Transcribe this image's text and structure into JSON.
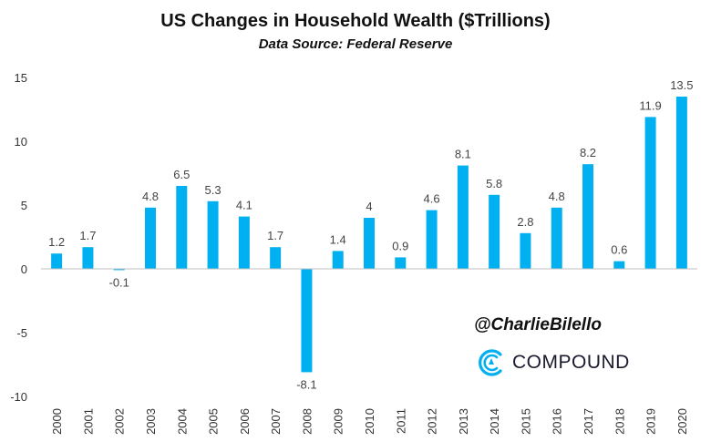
{
  "title": "US Changes in Household Wealth ($Trillions)",
  "subtitle": "Data Source: Federal Reserve",
  "handle": "@CharlieBilello",
  "brand": "COMPOUND",
  "brand_icon": "compound-logo-icon",
  "colors": {
    "bar": "#00b0f0",
    "axis": "#bfbfbf",
    "brand": "#00b0f0"
  },
  "chart_data": {
    "type": "bar",
    "title": "US Changes in Household Wealth ($Trillions)",
    "subtitle": "Data Source: Federal Reserve",
    "categories": [
      "2000",
      "2001",
      "2002",
      "2003",
      "2004",
      "2005",
      "2006",
      "2007",
      "2008",
      "2009",
      "2010",
      "2011",
      "2012",
      "2013",
      "2014",
      "2015",
      "2016",
      "2017",
      "2018",
      "2019",
      "2020"
    ],
    "values": [
      1.2,
      1.7,
      -0.1,
      4.8,
      6.5,
      5.3,
      4.1,
      1.7,
      -8.1,
      1.4,
      4,
      0.9,
      4.6,
      8.1,
      5.8,
      2.8,
      4.8,
      8.2,
      0.6,
      11.9,
      13.5
    ],
    "data_labels": [
      "1.2",
      "1.7",
      "-0.1",
      "4.8",
      "6.5",
      "5.3",
      "4.1",
      "1.7",
      "-8.1",
      "1.4",
      "4",
      "0.9",
      "4.6",
      "8.1",
      "5.8",
      "2.8",
      "4.8",
      "8.2",
      "0.6",
      "11.9",
      "13.5"
    ],
    "y_ticks": [
      "15",
      "10",
      "5",
      "0",
      "-5",
      "-10"
    ],
    "ylim": [
      -10,
      15
    ],
    "xlabel": "",
    "ylabel": "",
    "grid": false,
    "legend": "none"
  }
}
